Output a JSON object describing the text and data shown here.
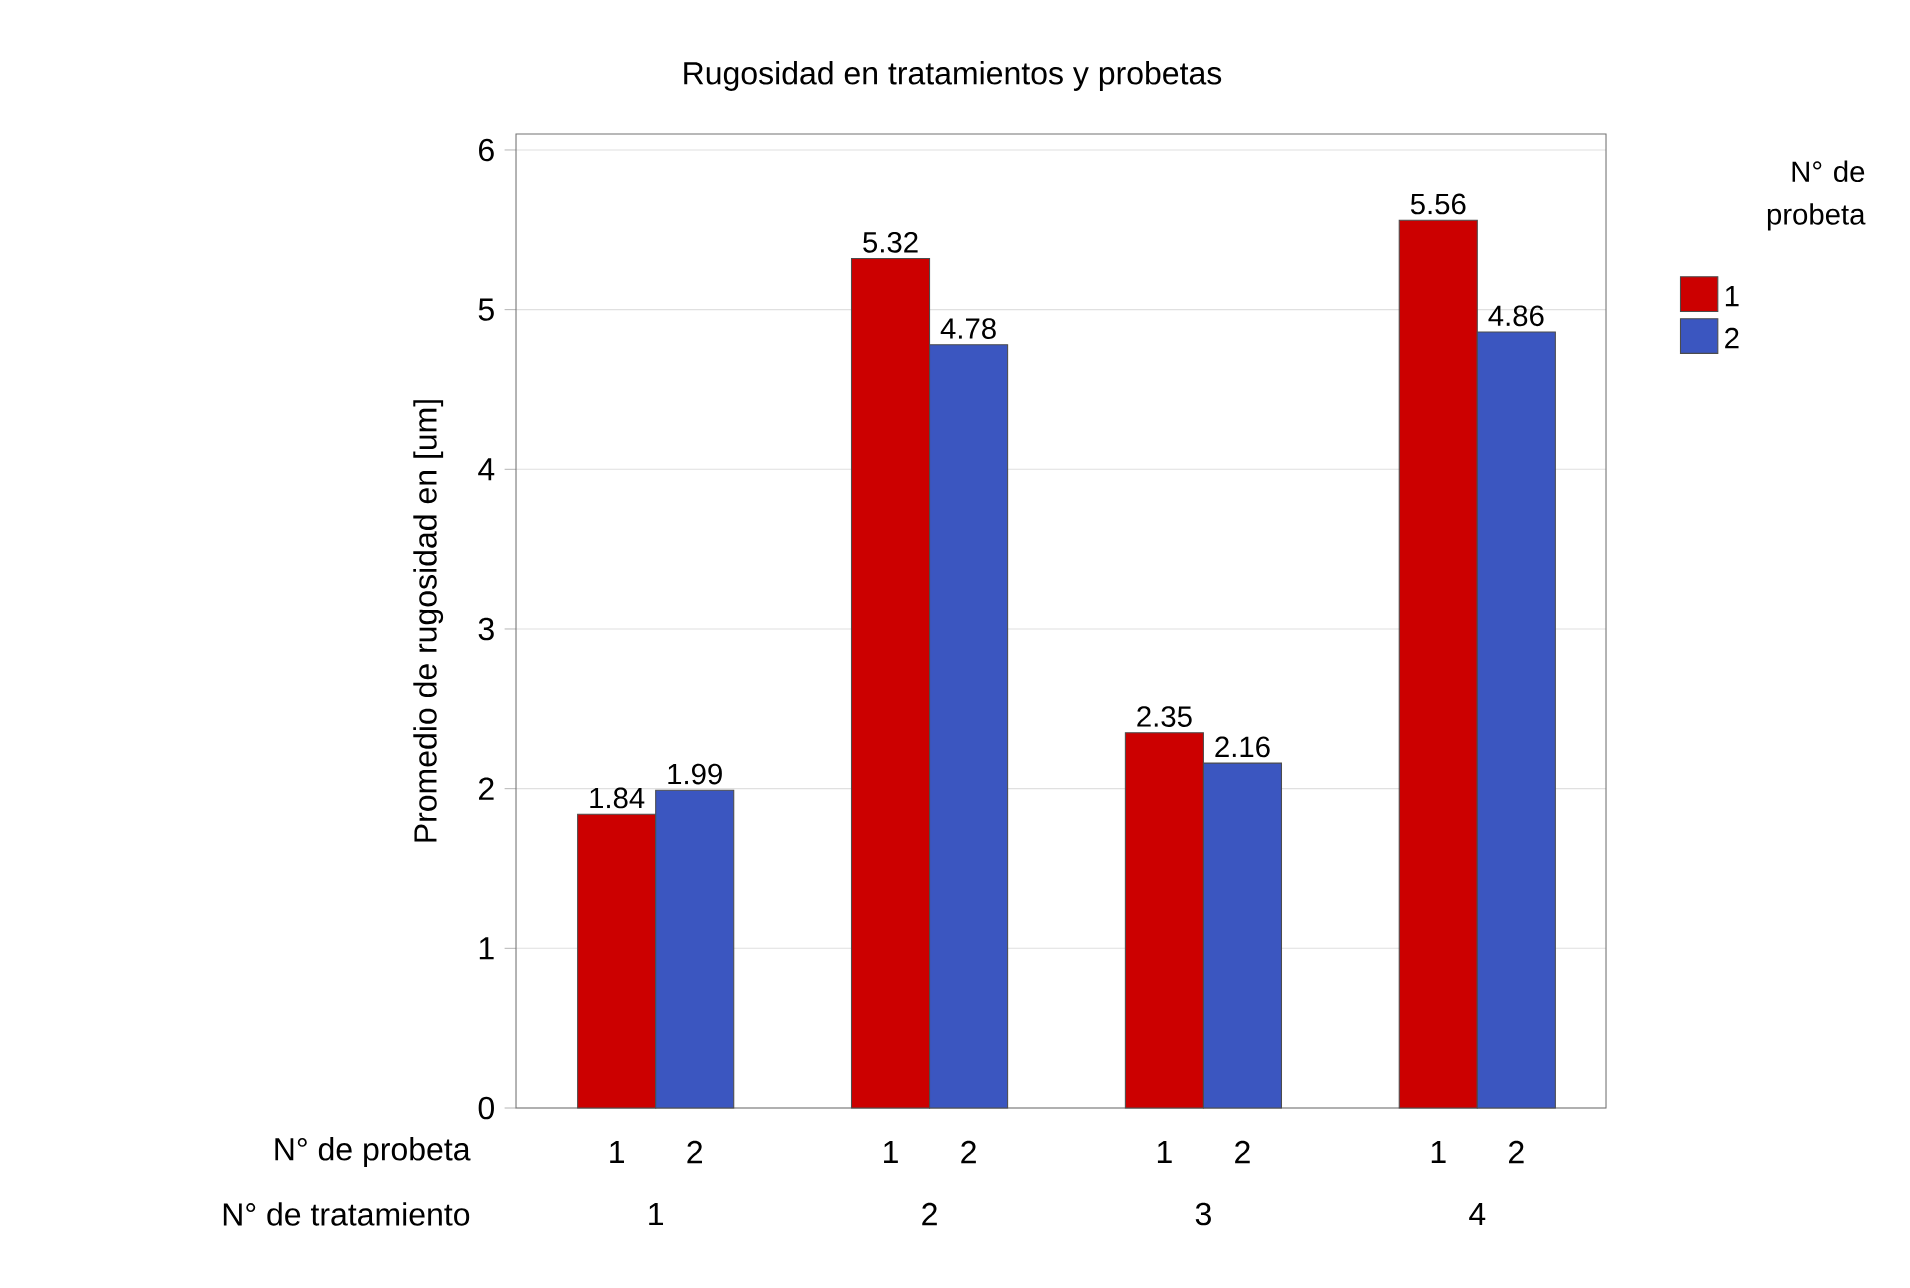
{
  "chart_data": {
    "type": "bar",
    "title": "Rugosidad en tratamientos y probetas",
    "xlabel": "N° de tratamiento",
    "ylabel": "Promedio de rugosidad en [um]",
    "legend_title": "N° de probeta",
    "categories": [
      "1",
      "2",
      "3",
      "4"
    ],
    "series": [
      {
        "name": "1",
        "color": "#cc0000",
        "values": [
          1.84,
          5.32,
          2.35,
          5.56
        ]
      },
      {
        "name": "2",
        "color": "#3b56c0",
        "values": [
          1.99,
          4.78,
          2.16,
          4.86
        ]
      }
    ],
    "ylim": [
      0,
      6.1
    ],
    "yticks": [
      0,
      1,
      2,
      3,
      4,
      5,
      6
    ],
    "grid": "y",
    "legend": "right",
    "data_labels": true
  }
}
